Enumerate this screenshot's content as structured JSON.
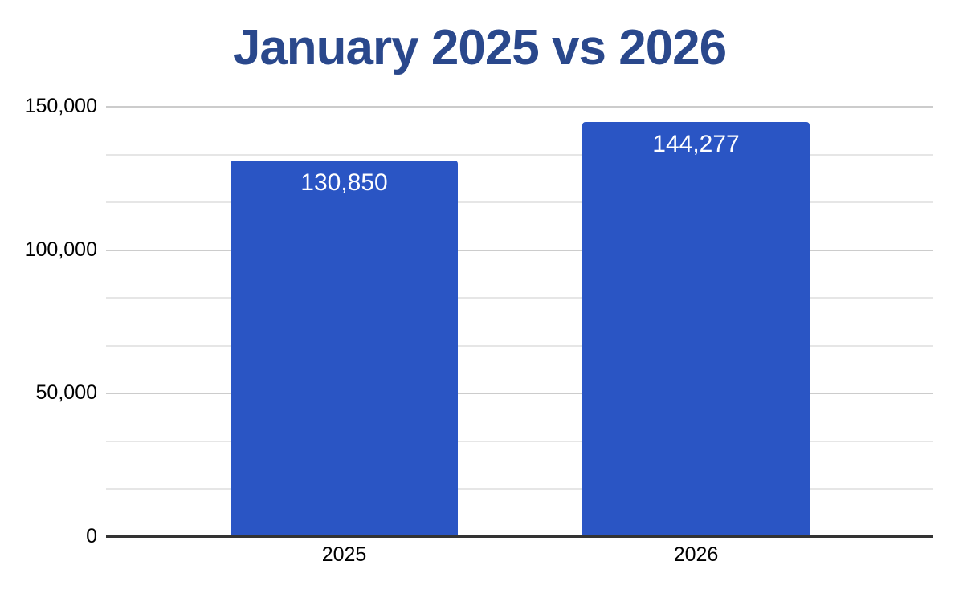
{
  "chart_data": {
    "type": "bar",
    "title": "January 2025 vs 2026",
    "categories": [
      "2025",
      "2026"
    ],
    "series": [
      {
        "name": "January",
        "values": [
          130850,
          144277
        ]
      }
    ],
    "data_labels": [
      "130,850",
      "144,277"
    ],
    "xlabel": "",
    "ylabel": "",
    "ylim": [
      0,
      150000
    ],
    "yticks": [
      {
        "value": 0,
        "label": "0"
      },
      {
        "value": 50000,
        "label": "50,000"
      },
      {
        "value": 100000,
        "label": "100,000"
      },
      {
        "value": 150000,
        "label": "150,000"
      }
    ],
    "minor_gridlines_per_interval": 2,
    "grid": true,
    "legend_position": "none",
    "colors": {
      "bar": "#2A55C4",
      "title": "#2A488C",
      "axis_line": "#333333",
      "major_gridline": "#CCCCCC",
      "minor_gridline": "#E6E6E6",
      "tick_label": "#000000",
      "data_label": "#FFFFFF",
      "background": "#FFFFFF"
    }
  }
}
